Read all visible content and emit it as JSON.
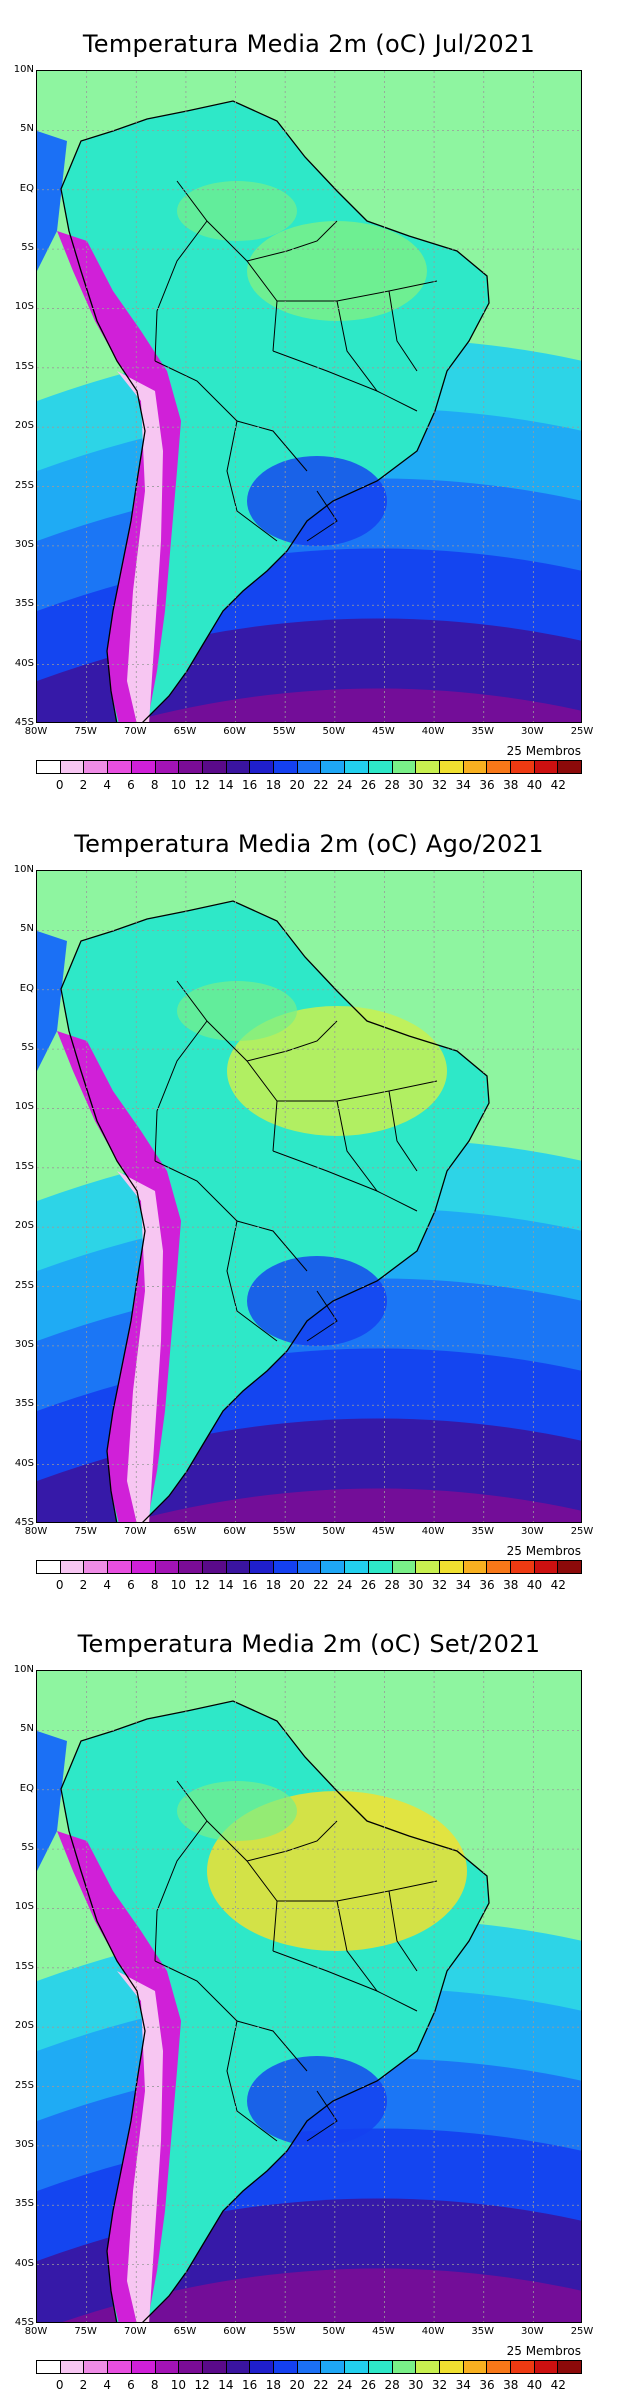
{
  "panels": [
    {
      "title": "Temperatura Media 2m (oC) Jul/2021"
    },
    {
      "title": "Temperatura Media 2m (oC) Ago/2021"
    },
    {
      "title": "Temperatura Media 2m (oC) Set/2021"
    }
  ],
  "lat_labels": [
    "10N",
    "5N",
    "EQ",
    "5S",
    "10S",
    "15S",
    "20S",
    "25S",
    "30S",
    "35S",
    "40S",
    "45S"
  ],
  "lon_labels": [
    "80W",
    "75W",
    "70W",
    "65W",
    "60W",
    "55W",
    "50W",
    "45W",
    "40W",
    "35W",
    "30W",
    "25W"
  ],
  "members_label": "25 Membros",
  "colorbar": {
    "ticks": [
      "0",
      "2",
      "4",
      "6",
      "8",
      "10",
      "12",
      "14",
      "16",
      "18",
      "20",
      "22",
      "24",
      "26",
      "28",
      "30",
      "32",
      "34",
      "36",
      "38",
      "40",
      "42"
    ],
    "colors": [
      "#ffffff",
      "#f7c6f2",
      "#ef8ce6",
      "#e84fe0",
      "#d020d8",
      "#a313b5",
      "#7a0c96",
      "#5a0a8a",
      "#3a14a0",
      "#1f1fcc",
      "#1440f0",
      "#1b70f5",
      "#1ea6f5",
      "#22d0ee",
      "#2ee8c8",
      "#79f088",
      "#c8f050",
      "#f0e030",
      "#f8b020",
      "#f87818",
      "#ee3a12",
      "#cc1010",
      "#8c0a0a"
    ]
  },
  "map": {
    "ocean_color": "#8ef5a0",
    "land_color": "#2ee8c8",
    "andes_color": "#d020d8",
    "coast_color": "#000000"
  }
}
